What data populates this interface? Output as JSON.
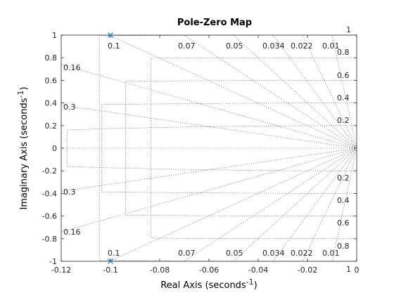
{
  "chart_data": {
    "type": "scatter",
    "title": "Pole-Zero Map",
    "xlabel": "Real Axis (seconds",
    "ylabel": "Imaginary Axis (seconds",
    "axis_label_superscript": "-1",
    "axis_label_suffix": ")",
    "xlim": [
      -0.12,
      0
    ],
    "ylim": [
      -1,
      1
    ],
    "xticks": [
      -0.12,
      -0.1,
      -0.08,
      -0.06,
      -0.04,
      -0.02,
      0
    ],
    "xtick_labels": [
      "-0.12",
      "-0.1",
      "-0.08",
      "-0.06",
      "-0.04",
      "-0.02",
      "0"
    ],
    "yticks": [
      -1,
      -0.8,
      -0.6,
      -0.4,
      -0.2,
      0,
      0.2,
      0.4,
      0.6,
      0.8,
      1
    ],
    "ytick_labels": [
      "-1",
      "-0.8",
      "-0.6",
      "-0.4",
      "-0.2",
      "0",
      "0.2",
      "0.4",
      "0.6",
      "0.8",
      "1"
    ],
    "grid": true,
    "poles": [
      {
        "x": -0.1,
        "y": 1
      },
      {
        "x": -0.1,
        "y": -1
      }
    ],
    "marker": "x",
    "marker_color": "#0072BD",
    "damping_lines": [
      0.1,
      0.16,
      0.3,
      0.05,
      0.07,
      0.034,
      0.022,
      0.01
    ],
    "top_damping_labels": [
      "0.1",
      "0.07",
      "0.05",
      "0.034",
      "0.022",
      "0.01"
    ],
    "left_damping_labels_upper": [
      "0.16",
      "0.3"
    ],
    "left_damping_labels_lower": [
      "0.3",
      "0.16"
    ],
    "bottom_damping_labels": [
      "0.1",
      "0.07",
      "0.05",
      "0.034",
      "0.022",
      "0.01"
    ],
    "frequency_labels_upper": [
      "1",
      "0.8",
      "0.6",
      "0.4",
      "0.2"
    ],
    "frequency_labels_lower": [
      "0.2",
      "0.4",
      "0.6",
      "0.8",
      "1"
    ],
    "frequency_label_values": [
      1,
      0.8,
      0.6,
      0.4,
      0.2
    ]
  }
}
